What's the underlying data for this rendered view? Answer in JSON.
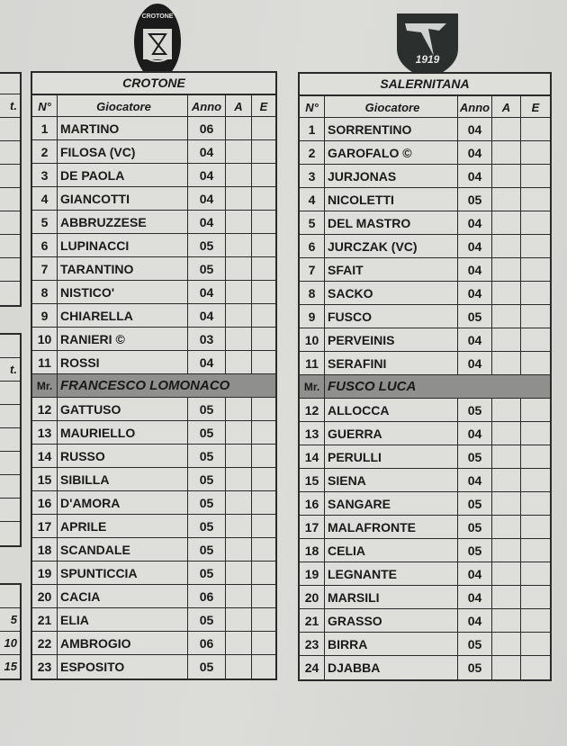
{
  "left_fragment": {
    "header_partial": "t.",
    "row11_partial": "t.",
    "bottom_values": [
      "5",
      "10",
      "15"
    ]
  },
  "columns": {
    "num": "N°",
    "player": "Giocatore",
    "year": "Anno",
    "a": "A",
    "e": "E"
  },
  "coach_prefix": "Mr.",
  "home": {
    "name": "CROTONE",
    "logo_text": "F.C. CROTONE",
    "starters": [
      {
        "num": "1",
        "name": "MARTINO",
        "year": "06"
      },
      {
        "num": "2",
        "name": "FILOSA (VC)",
        "year": "04"
      },
      {
        "num": "3",
        "name": "DE PAOLA",
        "year": "04"
      },
      {
        "num": "4",
        "name": "GIANCOTTI",
        "year": "04"
      },
      {
        "num": "5",
        "name": "ABBRUZZESE",
        "year": "04"
      },
      {
        "num": "6",
        "name": "LUPINACCI",
        "year": "05"
      },
      {
        "num": "7",
        "name": "TARANTINO",
        "year": "05"
      },
      {
        "num": "8",
        "name": "NISTICO'",
        "year": "04"
      },
      {
        "num": "9",
        "name": "CHIARELLA",
        "year": "04"
      },
      {
        "num": "10",
        "name": "RANIERI ©",
        "year": "03"
      },
      {
        "num": "11",
        "name": "ROSSI",
        "year": "04"
      }
    ],
    "coach": "FRANCESCO LOMONACO",
    "subs": [
      {
        "num": "12",
        "name": "GATTUSO",
        "year": "05"
      },
      {
        "num": "13",
        "name": "MAURIELLO",
        "year": "05"
      },
      {
        "num": "14",
        "name": "RUSSO",
        "year": "05"
      },
      {
        "num": "15",
        "name": "SIBILLA",
        "year": "05"
      },
      {
        "num": "16",
        "name": "D'AMORA",
        "year": "05"
      },
      {
        "num": "17",
        "name": "APRILE",
        "year": "05"
      },
      {
        "num": "18",
        "name": "SCANDALE",
        "year": "05"
      },
      {
        "num": "19",
        "name": "SPUNTICCIA",
        "year": "05"
      },
      {
        "num": "20",
        "name": "CACIA",
        "year": "06"
      },
      {
        "num": "21",
        "name": "ELIA",
        "year": "05"
      },
      {
        "num": "22",
        "name": "AMBROGIO",
        "year": "06"
      },
      {
        "num": "23",
        "name": "ESPOSITO",
        "year": "05"
      }
    ]
  },
  "away": {
    "name": "SALERNITANA",
    "logo_text": "1919",
    "starters": [
      {
        "num": "1",
        "name": "SORRENTINO",
        "year": "04"
      },
      {
        "num": "2",
        "name": "GAROFALO ©",
        "year": "04"
      },
      {
        "num": "3",
        "name": "JURJONAS",
        "year": "04"
      },
      {
        "num": "4",
        "name": "NICOLETTI",
        "year": "05"
      },
      {
        "num": "5",
        "name": "DEL MASTRO",
        "year": "04"
      },
      {
        "num": "6",
        "name": "JURCZAK (VC)",
        "year": "04"
      },
      {
        "num": "7",
        "name": "SFAIT",
        "year": "04"
      },
      {
        "num": "8",
        "name": "SACKO",
        "year": "04"
      },
      {
        "num": "9",
        "name": "FUSCO",
        "year": "05"
      },
      {
        "num": "10",
        "name": "PERVEINIS",
        "year": "04"
      },
      {
        "num": "11",
        "name": "SERAFINI",
        "year": "04"
      }
    ],
    "coach": "FUSCO LUCA",
    "subs": [
      {
        "num": "12",
        "name": "ALLOCCA",
        "year": "05"
      },
      {
        "num": "13",
        "name": "GUERRA",
        "year": "04"
      },
      {
        "num": "14",
        "name": "PERULLI",
        "year": "05"
      },
      {
        "num": "15",
        "name": "SIENA",
        "year": "04"
      },
      {
        "num": "16",
        "name": "SANGARE",
        "year": "05"
      },
      {
        "num": "17",
        "name": "MALAFRONTE",
        "year": "05"
      },
      {
        "num": "18",
        "name": "CELIA",
        "year": "05"
      },
      {
        "num": "19",
        "name": "LEGNANTE",
        "year": "04"
      },
      {
        "num": "20",
        "name": "MARSILI",
        "year": "04"
      },
      {
        "num": "21",
        "name": "GRASSO",
        "year": "04"
      },
      {
        "num": "23",
        "name": "BIRRA",
        "year": "05"
      },
      {
        "num": "24",
        "name": "DJABBA",
        "year": "05"
      }
    ]
  }
}
